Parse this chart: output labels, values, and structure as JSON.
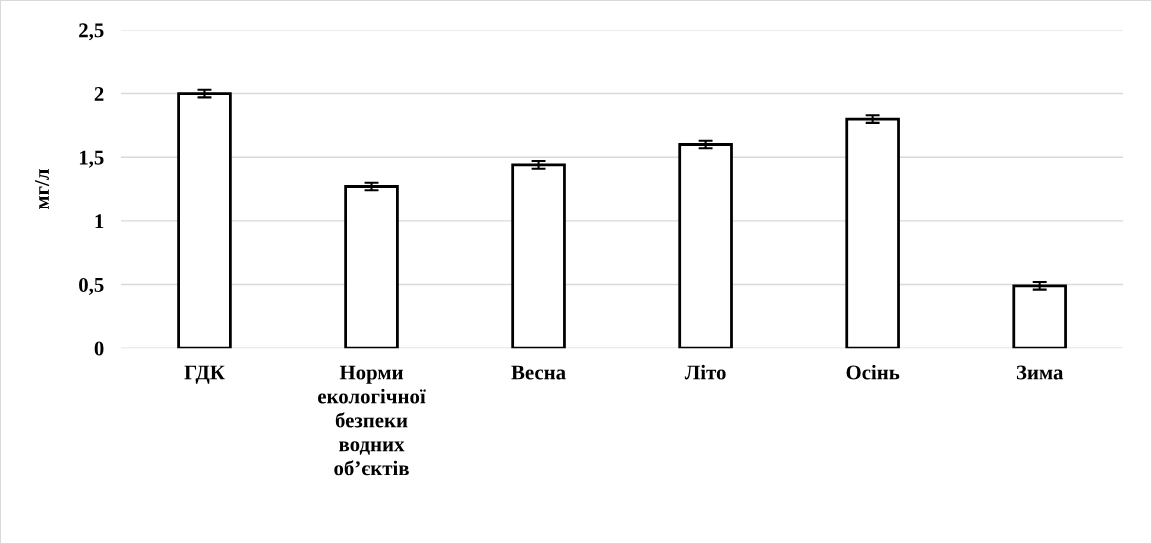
{
  "chart_data": {
    "type": "bar",
    "ylabel": "мг/л",
    "categories": [
      "ГДК",
      "Норми\nекологічної\nбезпеки\nводних\nоб’єктів",
      "Весна",
      "Літо",
      "Осінь",
      "Зима"
    ],
    "values": [
      2.0,
      1.27,
      1.44,
      1.6,
      1.8,
      0.49
    ],
    "errors": [
      0.03,
      0.03,
      0.03,
      0.03,
      0.03,
      0.03
    ],
    "color": "#ffffff",
    "ylim": [
      0,
      2.5
    ],
    "yticks": [
      {
        "value": 0,
        "label": "0"
      },
      {
        "value": 0.5,
        "label": "0,5"
      },
      {
        "value": 1,
        "label": "1"
      },
      {
        "value": 1.5,
        "label": "1,5"
      },
      {
        "value": 2,
        "label": "2"
      },
      {
        "value": 2.5,
        "label": "2,5"
      }
    ],
    "grid": "y",
    "legend": false
  }
}
